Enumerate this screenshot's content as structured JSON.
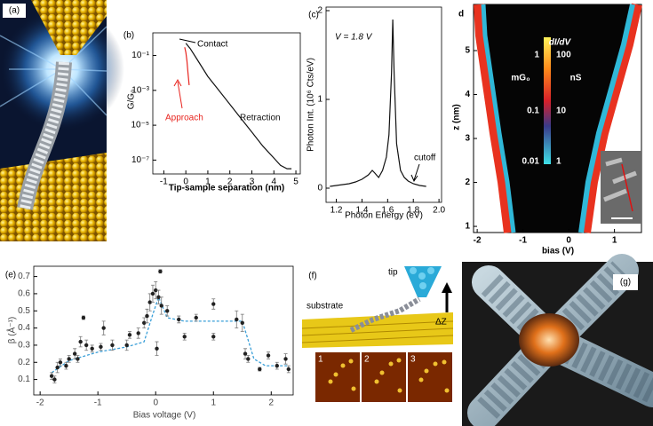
{
  "panels": {
    "a": {
      "label": "(a)"
    },
    "f": {
      "label": "(f)",
      "tip": "tip",
      "substrate": "substrate",
      "dz": "ΔZ",
      "frames": [
        "1",
        "2",
        "3"
      ]
    },
    "g": {
      "label": "(g)"
    }
  },
  "chart_data": [
    {
      "type": "line",
      "panel_label": "(b)",
      "xlabel": "Tip-sample separation (nm)",
      "ylabel": "G/G₀",
      "log_y": true,
      "xlim": [
        -1.5,
        5.2
      ],
      "ylim": [
        1.6e-08,
        2
      ],
      "xticks": [
        -1,
        0,
        1,
        2,
        3,
        4,
        5
      ],
      "yticks": [
        {
          "value": 1e-07,
          "label": "10⁻⁷"
        },
        {
          "value": 1e-05,
          "label": "10⁻⁵"
        },
        {
          "value": 0.001,
          "label": "10⁻³"
        },
        {
          "value": 0.1,
          "label": "10⁻¹"
        }
      ],
      "annotations": [
        "Contact"
      ],
      "series": [
        {
          "name": "Retraction",
          "color": "#111111",
          "x": [
            0,
            0.2,
            0.5,
            1,
            1.5,
            2,
            2.5,
            3,
            3.5,
            4,
            4.3,
            4.6,
            4.8
          ],
          "values": [
            0.5,
            0.25,
            0.063,
            0.0063,
            0.001,
            0.00016,
            2.5e-05,
            4e-06,
            6.3e-07,
            1.3e-07,
            5e-08,
            3.2e-08,
            3.2e-08
          ]
        },
        {
          "name": "Approach",
          "color": "#e8251f",
          "x": [
            0.15,
            0.1,
            0.05,
            0,
            -0.05
          ],
          "values": [
            0.002,
            0.01,
            0.05,
            0.15,
            0.3
          ]
        }
      ]
    },
    {
      "type": "line",
      "panel_label": "(c)",
      "xlabel": "Photon Energy (eV)",
      "ylabel": "Photon Int. (10⁶ Cts/eV)",
      "xlim": [
        1.12,
        2.02
      ],
      "ylim": [
        -0.16,
        2.04
      ],
      "xticks": [
        1.2,
        1.4,
        1.6,
        1.8,
        {
          "value": 2,
          "label": "2.0"
        }
      ],
      "yticks": [
        0,
        1,
        2
      ],
      "annotations": [
        "V = 1.8 V",
        "cutoff"
      ],
      "series": [
        {
          "color": "#111111",
          "x": [
            1.15,
            1.2,
            1.25,
            1.3,
            1.35,
            1.4,
            1.45,
            1.48,
            1.5,
            1.53,
            1.56,
            1.59,
            1.61,
            1.63,
            1.64,
            1.65,
            1.67,
            1.7,
            1.73,
            1.76,
            1.8,
            1.85,
            1.9
          ],
          "values": [
            0.02,
            0.03,
            0.04,
            0.05,
            0.07,
            0.1,
            0.15,
            0.2,
            0.17,
            0.12,
            0.2,
            0.35,
            0.6,
            1.3,
            1.9,
            1.3,
            0.5,
            0.2,
            0.12,
            0.08,
            0.05,
            0.03,
            0.02
          ]
        }
      ]
    },
    {
      "type": "heatmap",
      "panel_label": "d",
      "xlabel": "bias (V)",
      "ylabel": "z (nm)",
      "xlim": [
        -2.08,
        1.59
      ],
      "ylim": [
        0.86,
        6.05
      ],
      "xticks": [
        -2,
        -1,
        0,
        1
      ],
      "yticks": [
        1,
        2,
        3,
        4,
        5
      ],
      "colorbar_title": "dI/dV",
      "colorbar_units": [
        "mG₀",
        "nS"
      ],
      "colorbar_ticks_left": [
        1,
        0.1,
        0.01
      ],
      "colorbar_ticks_right": [
        100,
        10,
        1
      ]
    },
    {
      "type": "scatter",
      "panel_label": "(e)",
      "xlabel": "Bias voltage (V)",
      "ylabel": "β (Å⁻¹)",
      "xlim": [
        -2.11,
        2.38
      ],
      "ylim": [
        0.01,
        0.76
      ],
      "xticks": [
        -2,
        -1,
        0,
        1,
        2
      ],
      "yticks": [
        0.1,
        0.2,
        0.3,
        0.4,
        0.5,
        0.6,
        0.7
      ],
      "points": {
        "color": "#222222",
        "x": [
          -1.8,
          -1.75,
          -1.7,
          -1.65,
          -1.55,
          -1.5,
          -1.4,
          -1.35,
          -1.3,
          -1.25,
          -1.2,
          -1.1,
          -0.95,
          -0.9,
          -0.75,
          -0.5,
          -0.45,
          -0.3,
          -0.2,
          -0.15,
          -0.1,
          -0.05,
          0,
          0.02,
          0.05,
          0.08,
          0.1,
          0.2,
          0.4,
          0.5,
          0.7,
          1,
          1,
          1.4,
          1.5,
          1.55,
          1.6,
          1.8,
          1.95,
          2.1,
          2.25,
          2.3
        ],
        "values": [
          0.12,
          0.1,
          0.17,
          0.2,
          0.18,
          0.22,
          0.25,
          0.22,
          0.32,
          0.46,
          0.3,
          0.28,
          0.29,
          0.4,
          0.3,
          0.3,
          0.36,
          0.37,
          0.43,
          0.47,
          0.55,
          0.6,
          0.62,
          0.28,
          0.58,
          0.73,
          0.53,
          0.5,
          0.45,
          0.35,
          0.46,
          0.54,
          0.35,
          0.45,
          0.43,
          0.25,
          0.22,
          0.16,
          0.24,
          0.18,
          0.22,
          0.16
        ],
        "errors": [
          0.02,
          0.02,
          0.03,
          0.02,
          0.02,
          0.02,
          0.03,
          0.02,
          0.03,
          0.01,
          0.03,
          0.02,
          0.02,
          0.04,
          0.03,
          0.03,
          0.02,
          0.03,
          0.03,
          0.04,
          0.05,
          0.05,
          0.05,
          0.04,
          0.04,
          0.01,
          0.05,
          0.03,
          0.02,
          0.02,
          0.02,
          0.03,
          0.02,
          0.05,
          0.05,
          0.03,
          0.02,
          0.01,
          0.02,
          0.02,
          0.03,
          0.02
        ]
      },
      "fit": {
        "color": "#3a9fd8",
        "x": [
          -1.8,
          -1.5,
          -1,
          -0.5,
          -0.2,
          -0.05,
          0.05,
          0.2,
          0.5,
          1,
          1.5,
          1.7,
          1.9,
          2.3
        ],
        "values": [
          0.14,
          0.21,
          0.26,
          0.29,
          0.32,
          0.48,
          0.58,
          0.46,
          0.44,
          0.44,
          0.44,
          0.22,
          0.18,
          0.18
        ]
      }
    }
  ]
}
